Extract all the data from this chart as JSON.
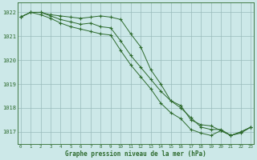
{
  "hours": [
    0,
    1,
    2,
    3,
    4,
    5,
    6,
    7,
    8,
    9,
    10,
    11,
    12,
    13,
    14,
    15,
    16,
    17,
    18,
    19,
    20,
    21,
    22,
    23
  ],
  "series1": [
    1021.8,
    1022.0,
    1022.0,
    1021.9,
    1021.85,
    1021.8,
    1021.75,
    1021.8,
    1021.85,
    1021.8,
    1021.7,
    1021.1,
    1020.55,
    1019.6,
    1019.0,
    1018.3,
    1018.1,
    1017.5,
    1017.3,
    1017.25,
    1017.05,
    1016.85,
    1017.0,
    1017.2
  ],
  "series2": [
    1021.8,
    1022.0,
    1022.0,
    1021.85,
    1021.7,
    1021.6,
    1021.5,
    1021.55,
    1021.4,
    1021.35,
    1020.8,
    1020.2,
    1019.7,
    1019.2,
    1018.7,
    1018.3,
    1018.0,
    1017.6,
    1017.2,
    1017.1,
    1017.1,
    1016.85,
    1017.0,
    1017.2
  ],
  "series3": [
    1021.8,
    1022.0,
    1021.9,
    1021.75,
    1021.55,
    1021.4,
    1021.3,
    1021.2,
    1021.1,
    1021.05,
    1020.4,
    1019.8,
    1019.3,
    1018.8,
    1018.2,
    1017.8,
    1017.55,
    1017.1,
    1016.95,
    1016.85,
    1017.05,
    1016.85,
    1016.95,
    1017.2
  ],
  "bg_color": "#cce8e8",
  "line_color": "#2d6a2d",
  "grid_color": "#99bbbb",
  "xlabel": "Graphe pression niveau de la mer (hPa)",
  "ylim": [
    1016.5,
    1022.4
  ],
  "yticks": [
    1017,
    1018,
    1019,
    1020,
    1021,
    1022
  ],
  "xticks": [
    0,
    1,
    2,
    3,
    4,
    5,
    6,
    7,
    8,
    9,
    10,
    11,
    12,
    13,
    14,
    15,
    16,
    17,
    18,
    19,
    20,
    21,
    22,
    23
  ]
}
